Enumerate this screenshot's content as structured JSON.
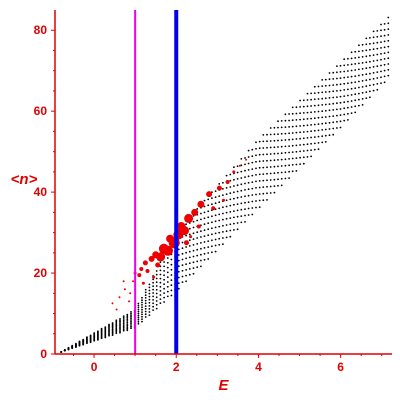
{
  "chart_data": {
    "type": "scatter",
    "xlabel": "E",
    "ylabel": "<n>",
    "xlim": [
      -0.95,
      7.25
    ],
    "ylim": [
      0,
      85
    ],
    "x_ticks": [
      {
        "value": 0,
        "label": "0"
      },
      {
        "value": 2,
        "label": "2"
      },
      {
        "value": 4,
        "label": "4"
      },
      {
        "value": 6,
        "label": "6"
      }
    ],
    "y_ticks": [
      {
        "value": 0,
        "label": "0"
      },
      {
        "value": 20,
        "label": "20"
      },
      {
        "value": 40,
        "label": "40"
      },
      {
        "value": 60,
        "label": "60"
      },
      {
        "value": 80,
        "label": "80"
      }
    ],
    "grid": false,
    "axis_color": "#e00000",
    "vertical_lines": [
      {
        "x": 1.0,
        "color": "#ee00ee"
      },
      {
        "x": 2.0,
        "color": "#0000ee"
      }
    ],
    "series": [
      {
        "color": "#000000",
        "description_fan": {
          "lower_edge": [
            [
              -0.8,
              0.5
            ],
            [
              1.0,
              6.5
            ],
            [
              2.0,
              15.5
            ],
            [
              4.0,
              36.0
            ],
            [
              6.0,
              56.0
            ],
            [
              7.25,
              69.0
            ]
          ],
          "upper_edge": [
            [
              -0.8,
              0.5
            ],
            [
              1.0,
              11.0
            ],
            [
              2.0,
              30.0
            ],
            [
              4.0,
              53.0
            ],
            [
              6.0,
              72.0
            ],
            [
              7.25,
              84.0
            ]
          ],
          "curves": 22,
          "points_per_curve": 46
        }
      },
      {
        "color": "#ee0000",
        "points": [
          [
            0.45,
            12.5,
            1
          ],
          [
            0.55,
            11.0,
            1
          ],
          [
            0.62,
            14.0,
            1
          ],
          [
            0.75,
            16.0,
            1
          ],
          [
            0.72,
            18.0,
            1
          ],
          [
            0.88,
            15.0,
            1
          ],
          [
            0.95,
            18.0,
            1
          ],
          [
            1.0,
            20.0,
            1.5
          ],
          [
            1.1,
            19.5,
            2
          ],
          [
            1.15,
            21.0,
            2
          ],
          [
            1.2,
            17.5,
            1.5
          ],
          [
            1.3,
            20.5,
            2
          ],
          [
            1.25,
            22.5,
            2.5
          ],
          [
            1.4,
            23.5,
            3
          ],
          [
            1.5,
            24.5,
            3.5
          ],
          [
            1.55,
            22.0,
            2.5
          ],
          [
            1.62,
            24.0,
            4.5
          ],
          [
            1.7,
            26.0,
            5
          ],
          [
            1.8,
            25.5,
            5
          ],
          [
            1.85,
            28.5,
            4
          ],
          [
            1.95,
            27.5,
            5.5
          ],
          [
            2.05,
            29.5,
            5
          ],
          [
            2.12,
            31.5,
            4.5
          ],
          [
            2.2,
            30.5,
            4.5
          ],
          [
            2.3,
            33.5,
            4.5
          ],
          [
            2.25,
            27.5,
            2.5
          ],
          [
            2.45,
            35.0,
            3.5
          ],
          [
            2.6,
            37.0,
            3.5
          ],
          [
            2.55,
            31.5,
            2
          ],
          [
            2.8,
            39.5,
            3
          ],
          [
            2.9,
            36.0,
            2
          ],
          [
            3.05,
            41.0,
            2.5
          ],
          [
            3.15,
            38.0,
            1.5
          ],
          [
            3.25,
            42.5,
            2
          ],
          [
            3.4,
            45.0,
            1.5
          ],
          [
            3.55,
            46.5,
            1
          ],
          [
            3.7,
            48.0,
            1
          ],
          [
            2.35,
            29.0,
            1.5
          ],
          [
            1.45,
            19.0,
            1.5
          ],
          [
            0.85,
            13.0,
            1
          ]
        ]
      }
    ]
  }
}
